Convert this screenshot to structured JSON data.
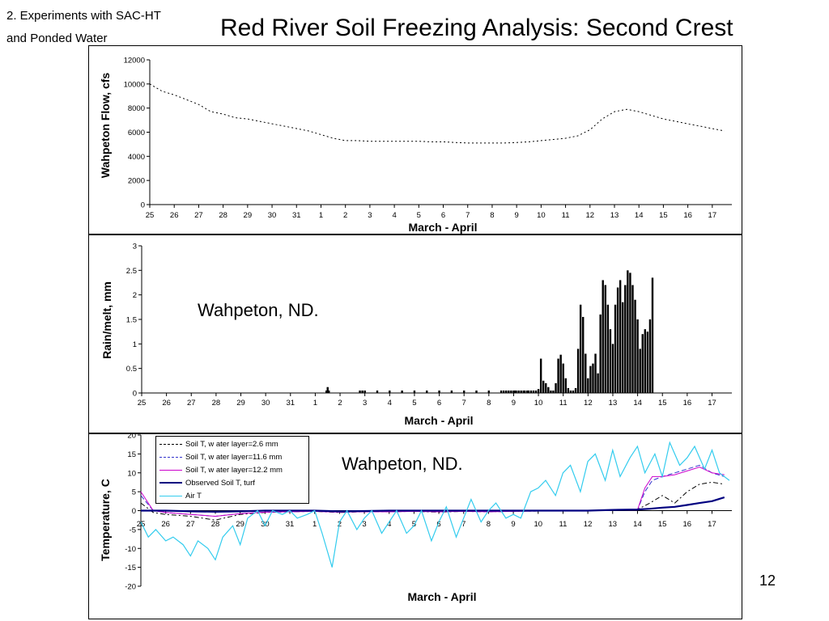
{
  "slide": {
    "subtitle_line1": "2. Experiments with SAC-HT",
    "subtitle_line2": "and Ponded Water",
    "title": "Red River Soil Freezing Analysis: Second Crest",
    "page_number": "12"
  },
  "x_axis_dates": [
    "25",
    "26",
    "27",
    "28",
    "29",
    "30",
    "31",
    "1",
    "2",
    "3",
    "4",
    "5",
    "6",
    "7",
    "8",
    "9",
    "10",
    "11",
    "12",
    "13",
    "14",
    "15",
    "16",
    "17"
  ],
  "chart_data": [
    {
      "type": "line",
      "ylabel": "Wahpeton Flow, cfs",
      "xlabel": "March - April",
      "ylim": [
        0,
        12000
      ],
      "yticks": [
        0,
        2000,
        4000,
        6000,
        8000,
        10000,
        12000
      ],
      "ytick_labels": [
        "0",
        "2000",
        "4000",
        "6000",
        "8000",
        "10000",
        "12000"
      ],
      "x_dates": [
        "25",
        "26",
        "27",
        "28",
        "29",
        "30",
        "31",
        "1",
        "2",
        "3",
        "4",
        "5",
        "6",
        "7",
        "8",
        "9",
        "10",
        "11",
        "12",
        "13",
        "14",
        "15",
        "16",
        "17"
      ],
      "series": [
        {
          "color": "#000000",
          "dash": "dotted",
          "x": [
            0,
            0.5,
            1,
            1.5,
            2,
            2.5,
            3,
            3.5,
            4,
            4.5,
            5,
            5.5,
            6,
            6.5,
            7,
            7.5,
            8,
            8.5,
            9,
            9.5,
            10,
            10.5,
            11,
            11.5,
            12,
            12.5,
            13,
            13.5,
            14,
            14.5,
            15,
            15.5,
            16,
            16.5,
            17,
            17.5,
            18,
            18.5,
            19,
            19.5,
            20,
            20.5,
            21,
            21.5,
            22,
            22.5,
            23,
            23.5
          ],
          "values": [
            10000,
            9400,
            9100,
            8700,
            8300,
            7700,
            7500,
            7200,
            7100,
            6900,
            6700,
            6500,
            6300,
            6100,
            5800,
            5500,
            5300,
            5300,
            5250,
            5250,
            5250,
            5250,
            5250,
            5200,
            5200,
            5150,
            5100,
            5100,
            5100,
            5100,
            5150,
            5200,
            5300,
            5400,
            5500,
            5700,
            6200,
            7100,
            7700,
            7900,
            7700,
            7400,
            7100,
            6900,
            6700,
            6500,
            6300,
            6100
          ]
        }
      ]
    },
    {
      "type": "bar",
      "ylabel": "Rain/melt, mm",
      "xlabel": "March - April",
      "annotation": "Wahpeton, ND.",
      "ylim": [
        0,
        3
      ],
      "yticks": [
        0,
        0.5,
        1,
        1.5,
        2,
        2.5,
        3
      ],
      "ytick_labels": [
        "0",
        "0.5",
        "1",
        "1.5",
        "2",
        "2.5",
        "3"
      ],
      "x_dates": [
        "25",
        "26",
        "27",
        "28",
        "29",
        "30",
        "31",
        "1",
        "2",
        "3",
        "4",
        "5",
        "6",
        "7",
        "8",
        "9",
        "10",
        "11",
        "12",
        "13",
        "14",
        "15",
        "16",
        "17"
      ],
      "x": [
        7.45,
        7.5,
        7.55,
        8.8,
        8.9,
        9.0,
        9.5,
        10.0,
        10.5,
        11.0,
        11.5,
        12.0,
        12.5,
        13.0,
        13.5,
        14.0,
        14.5,
        14.6,
        14.7,
        14.8,
        14.9,
        15.0,
        15.05,
        15.1,
        15.2,
        15.3,
        15.4,
        15.45,
        15.55,
        15.6,
        15.7,
        15.8,
        15.9,
        16.0,
        16.1,
        16.2,
        16.3,
        16.4,
        16.5,
        16.6,
        16.7,
        16.8,
        16.9,
        17.0,
        17.1,
        17.2,
        17.3,
        17.4,
        17.5,
        17.6,
        17.7,
        17.8,
        17.9,
        18.0,
        18.1,
        18.2,
        18.3,
        18.4,
        18.5,
        18.6,
        18.7,
        18.8,
        18.9,
        19.0,
        19.1,
        19.2,
        19.3,
        19.4,
        19.5,
        19.6,
        19.7,
        19.8,
        19.9,
        20.0,
        20.1,
        20.2,
        20.3,
        20.4,
        20.5,
        20.6
      ],
      "values": [
        0.05,
        0.12,
        0.05,
        0.05,
        0.05,
        0.05,
        0.05,
        0.05,
        0.05,
        0.05,
        0.05,
        0.05,
        0.05,
        0.05,
        0.05,
        0.05,
        0.05,
        0.05,
        0.05,
        0.05,
        0.05,
        0.05,
        0.05,
        0.05,
        0.05,
        0.05,
        0.05,
        0.05,
        0.05,
        0.05,
        0.05,
        0.05,
        0.05,
        0.08,
        0.7,
        0.25,
        0.2,
        0.12,
        0.05,
        0.05,
        0.2,
        0.7,
        0.78,
        0.6,
        0.3,
        0.1,
        0.05,
        0.05,
        0.1,
        0.9,
        1.8,
        1.55,
        0.8,
        0.3,
        0.55,
        0.6,
        0.8,
        0.4,
        1.6,
        2.3,
        2.2,
        1.8,
        1.3,
        1.0,
        1.8,
        2.15,
        2.3,
        1.85,
        2.2,
        2.5,
        2.45,
        2.2,
        1.9,
        1.5,
        0.9,
        1.2,
        1.3,
        1.25,
        1.5,
        2.35
      ],
      "bar_color": "#000000"
    },
    {
      "type": "line",
      "ylabel": "Temperature, C",
      "xlabel": "March - April",
      "annotation": "Wahpeton, ND.",
      "ylim": [
        -20,
        20
      ],
      "yticks": [
        -20,
        -15,
        -10,
        -5,
        0,
        5,
        10,
        15,
        20
      ],
      "ytick_labels": [
        "-20",
        "-15",
        "-10",
        "-5",
        "0",
        "5",
        "10",
        "15",
        "20"
      ],
      "x_dates": [
        "25",
        "26",
        "27",
        "28",
        "29",
        "30",
        "31",
        "1",
        "2",
        "3",
        "4",
        "5",
        "6",
        "7",
        "8",
        "9",
        "10",
        "11",
        "12",
        "13",
        "14",
        "15",
        "16",
        "17"
      ],
      "legend": [
        {
          "label": "Soil T, w ater layer=2.6 mm",
          "color": "#000000",
          "width": 1,
          "dash": "dashdot"
        },
        {
          "label": "Soil T, w ater layer=11.6 mm",
          "color": "#3333cc",
          "width": 1,
          "dash": "dashed"
        },
        {
          "label": "Soil T, w ater layer=12.2 mm",
          "color": "#cc00cc",
          "width": 1,
          "dash": "solid"
        },
        {
          "label": "Observed Soil T, turf",
          "color": "#000080",
          "width": 2.2,
          "dash": "solid"
        },
        {
          "label": "Air T",
          "color": "#33ccee",
          "width": 1.2,
          "dash": "solid"
        }
      ],
      "series": [
        {
          "name": "Soil T, w ater layer=2.6 mm",
          "x": [
            0,
            0.5,
            1,
            2,
            3,
            4,
            5,
            6,
            7,
            8,
            9,
            10,
            11,
            12,
            13,
            14,
            15,
            16,
            17,
            18,
            19,
            20,
            20.5,
            21,
            21.5,
            22,
            22.5,
            23,
            23.5
          ],
          "values": [
            2,
            -0.5,
            -1,
            -1.5,
            -2.5,
            -1,
            -0.5,
            -0.3,
            -0.2,
            -0.5,
            -0.3,
            -0.3,
            -0.2,
            -0.4,
            -0.2,
            -0.3,
            -0.2,
            -0.1,
            0,
            0,
            0.1,
            0.3,
            2,
            4,
            2,
            5,
            7,
            7.5,
            7
          ]
        },
        {
          "name": "Soil T, w ater layer=11.6 mm",
          "x": [
            0,
            0.5,
            1,
            2,
            3,
            4,
            5,
            6,
            7,
            8,
            9,
            10,
            11,
            12,
            13,
            14,
            15,
            16,
            17,
            18,
            19,
            20,
            20.3,
            20.6,
            21,
            21.5,
            22,
            22.5,
            23,
            23.5
          ],
          "values": [
            4,
            0,
            -0.5,
            -1,
            -1.5,
            -0.8,
            -0.4,
            -0.3,
            -0.2,
            -0.4,
            -0.3,
            -0.3,
            -0.2,
            -0.3,
            -0.2,
            -0.3,
            -0.2,
            -0.1,
            0,
            0,
            0.1,
            0.2,
            5,
            8,
            9,
            10,
            11,
            12,
            10,
            9
          ]
        },
        {
          "name": "Soil T, w ater layer=12.2 mm",
          "x": [
            0,
            0.5,
            1,
            2,
            3,
            4,
            5,
            6,
            7,
            8,
            9,
            10,
            11,
            12,
            13,
            14,
            15,
            16,
            17,
            18,
            19,
            20,
            20.3,
            20.6,
            21,
            21.5,
            22,
            22.5,
            23,
            23.5
          ],
          "values": [
            5,
            0,
            -0.5,
            -1,
            -1.5,
            -0.8,
            -0.4,
            -0.3,
            -0.2,
            -0.4,
            -0.3,
            -0.3,
            -0.2,
            -0.3,
            -0.2,
            -0.3,
            -0.2,
            -0.1,
            0,
            0,
            0.1,
            0.2,
            6,
            9,
            9,
            9.5,
            10.5,
            11.5,
            10,
            9.5
          ]
        },
        {
          "name": "Observed Soil T, turf",
          "x": [
            0,
            1,
            2,
            3,
            4,
            5,
            6,
            7,
            8,
            9,
            10,
            11,
            12,
            13,
            14,
            15,
            16,
            17,
            18,
            19,
            20,
            20.5,
            21,
            21.5,
            22,
            22.5,
            23,
            23.5
          ],
          "values": [
            0,
            0,
            -0.2,
            -0.3,
            -0.2,
            0,
            0,
            0,
            -0.2,
            -0.1,
            0,
            0,
            0,
            0,
            0,
            0,
            0,
            0,
            0,
            0.2,
            0.3,
            0.5,
            0.8,
            1,
            1.5,
            2,
            2.5,
            3.5
          ]
        },
        {
          "name": "Air T",
          "x": [
            0,
            0.3,
            0.6,
            1,
            1.3,
            1.7,
            2,
            2.3,
            2.7,
            3,
            3.3,
            3.7,
            4,
            4.3,
            4.7,
            5,
            5.3,
            5.7,
            6,
            6.3,
            6.7,
            7,
            7.3,
            7.7,
            8,
            8.3,
            8.7,
            9,
            9.3,
            9.7,
            10,
            10.3,
            10.7,
            11,
            11.3,
            11.7,
            12,
            12.3,
            12.7,
            13,
            13.3,
            13.7,
            14,
            14.3,
            14.7,
            15,
            15.3,
            15.7,
            16,
            16.3,
            16.7,
            17,
            17.3,
            17.7,
            18,
            18.3,
            18.7,
            19,
            19.3,
            19.7,
            20,
            20.3,
            20.7,
            21,
            21.3,
            21.7,
            22,
            22.3,
            22.7,
            23,
            23.3,
            23.7
          ],
          "values": [
            -3,
            -7,
            -5,
            -8,
            -7,
            -9,
            -12,
            -8,
            -10,
            -13,
            -7,
            -4,
            -9,
            -2,
            0,
            -4,
            0,
            -1,
            0,
            -2,
            -1,
            0,
            -6,
            -15,
            -3,
            0,
            -5,
            -2,
            0,
            -6,
            -3,
            0,
            -6,
            -4,
            0,
            -8,
            -3,
            1,
            -7,
            -2,
            3,
            -3,
            0,
            2,
            -2,
            -1,
            -2,
            5,
            6,
            8,
            4,
            10,
            12,
            5,
            13,
            15,
            8,
            16,
            9,
            14,
            17,
            10,
            15,
            9,
            18,
            12,
            14,
            17,
            11,
            16,
            10,
            8
          ]
        }
      ]
    }
  ]
}
